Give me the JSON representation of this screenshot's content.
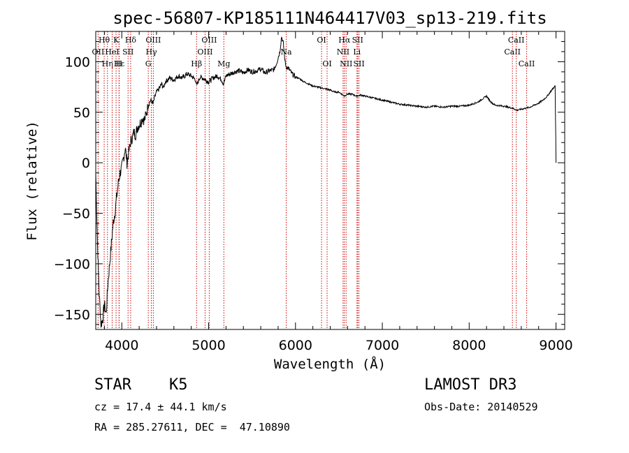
{
  "chart_data": {
    "type": "line",
    "title": "spec-56807-KP185111N464417V03_sp13-219.fits",
    "xlabel": "Wavelength (Å)",
    "ylabel": "Flux (relative)",
    "xlim": [
      3700,
      9100
    ],
    "ylim": [
      -165,
      130
    ],
    "xticks": [
      4000,
      5000,
      6000,
      7000,
      8000,
      9000
    ],
    "yticks": [
      -150,
      -100,
      -50,
      0,
      50,
      100
    ],
    "series": [
      {
        "name": "spectrum",
        "x": [
          3700,
          3720,
          3740,
          3760,
          3780,
          3800,
          3820,
          3840,
          3860,
          3880,
          3900,
          3920,
          3940,
          3960,
          3980,
          4000,
          4020,
          4040,
          4060,
          4080,
          4100,
          4120,
          4140,
          4160,
          4180,
          4200,
          4220,
          4240,
          4260,
          4280,
          4300,
          4320,
          4340,
          4360,
          4380,
          4400,
          4420,
          4440,
          4460,
          4480,
          4500,
          4550,
          4600,
          4650,
          4700,
          4750,
          4800,
          4850,
          4861,
          4900,
          4950,
          5000,
          5050,
          5100,
          5150,
          5172,
          5200,
          5250,
          5300,
          5350,
          5400,
          5450,
          5500,
          5550,
          5600,
          5650,
          5700,
          5750,
          5780,
          5800,
          5820,
          5840,
          5860,
          5880,
          5893,
          5910,
          5930,
          5960,
          6000,
          6050,
          6100,
          6150,
          6200,
          6250,
          6300,
          6350,
          6400,
          6450,
          6500,
          6563,
          6600,
          6650,
          6700,
          6750,
          6800,
          6900,
          7000,
          7100,
          7200,
          7300,
          7400,
          7500,
          7600,
          7700,
          7800,
          7900,
          8000,
          8100,
          8150,
          8200,
          8250,
          8300,
          8400,
          8500,
          8550,
          8600,
          8650,
          8700,
          8750,
          8800,
          8850,
          8900,
          8950,
          8990,
          9000
        ],
        "y": [
          -10,
          -80,
          -130,
          -160,
          -155,
          -140,
          -150,
          -120,
          -100,
          -80,
          -60,
          -50,
          -35,
          -20,
          -10,
          -5,
          5,
          15,
          0,
          10,
          20,
          25,
          30,
          28,
          35,
          38,
          40,
          45,
          42,
          48,
          55,
          60,
          62,
          58,
          65,
          70,
          72,
          75,
          78,
          74,
          80,
          84,
          82,
          86,
          84,
          88,
          86,
          82,
          76,
          85,
          83,
          80,
          84,
          86,
          82,
          78,
          86,
          88,
          90,
          91,
          89,
          92,
          90,
          91,
          93,
          89,
          91,
          92,
          98,
          104,
          110,
          125,
          118,
          100,
          95,
          94,
          92,
          88,
          85,
          83,
          80,
          78,
          76,
          75,
          74,
          73,
          72,
          70,
          70,
          66,
          68,
          68,
          66,
          67,
          66,
          64,
          62,
          60,
          58,
          57,
          56,
          55,
          56,
          55,
          56,
          56,
          57,
          60,
          63,
          66,
          60,
          57,
          56,
          54,
          52,
          53,
          54,
          55,
          57,
          59,
          62,
          66,
          72,
          76,
          0
        ]
      }
    ],
    "lines": [
      {
        "label": "Hθ",
        "x": 3797,
        "row": 1
      },
      {
        "label": "OII",
        "x": 3727,
        "row": 2
      },
      {
        "label": "Hη",
        "x": 3835,
        "row": 3
      },
      {
        "label": "K",
        "x": 3934,
        "row": 1
      },
      {
        "label": "H",
        "x": 3968,
        "row": 3
      },
      {
        "label": "HeI",
        "x": 3889,
        "row": 2
      },
      {
        "label": "Hε",
        "x": 3970,
        "row": 3
      },
      {
        "label": "SII",
        "x": 4072,
        "row": 2
      },
      {
        "label": "Hδ",
        "x": 4102,
        "row": 1
      },
      {
        "label": "G",
        "x": 4305,
        "row": 3
      },
      {
        "label": "Hγ",
        "x": 4340,
        "row": 2
      },
      {
        "label": "OIII",
        "x": 4363,
        "row": 1
      },
      {
        "label": "Hβ",
        "x": 4861,
        "row": 3
      },
      {
        "label": "OIII",
        "x": 4959,
        "row": 2
      },
      {
        "label": "OIII",
        "x": 5007,
        "row": 1
      },
      {
        "label": "Mg",
        "x": 5175,
        "row": 3
      },
      {
        "label": "Na",
        "x": 5893,
        "row": 2
      },
      {
        "label": "OI",
        "x": 6300,
        "row": 1
      },
      {
        "label": "OI",
        "x": 6364,
        "row": 3
      },
      {
        "label": "NII",
        "x": 6548,
        "row": 2
      },
      {
        "label": "Hα",
        "x": 6563,
        "row": 1
      },
      {
        "label": "NII",
        "x": 6583,
        "row": 3
      },
      {
        "label": "SII",
        "x": 6716,
        "row": 1
      },
      {
        "label": "Li",
        "x": 6708,
        "row": 2
      },
      {
        "label": "SII",
        "x": 6731,
        "row": 3
      },
      {
        "label": "CaII",
        "x": 8498,
        "row": 2
      },
      {
        "label": "CaII",
        "x": 8542,
        "row": 1
      },
      {
        "label": "CaII",
        "x": 8662,
        "row": 3
      }
    ]
  },
  "info": {
    "object_class": "STAR",
    "subclass": "K5",
    "survey": "LAMOST DR3",
    "redshift": "cz = 17.4 ± 44.1 km/s",
    "obs_date": "Obs-Date: 20140529",
    "coords": "RA = 285.27611, DEC =  47.10890"
  }
}
